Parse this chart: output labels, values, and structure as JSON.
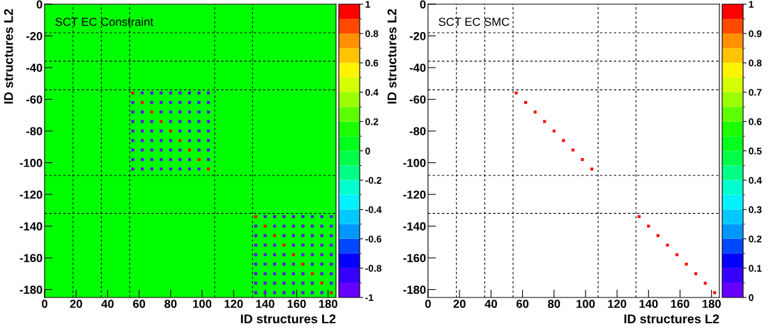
{
  "chart_data": [
    {
      "type": "scatter",
      "annotations": [
        "SCT EC Constraint"
      ],
      "xlabel": "ID structures L2",
      "ylabel": "ID structures L2",
      "xlim": [
        0,
        185
      ],
      "ylim": [
        -185,
        0
      ],
      "xticks": [
        0,
        20,
        40,
        60,
        80,
        100,
        120,
        140,
        160,
        180
      ],
      "yticks": [
        -180,
        -160,
        -140,
        -120,
        -100,
        -80,
        -60,
        -40,
        -20,
        0
      ],
      "clim": [
        -1,
        1
      ],
      "cticks": [
        -1,
        -0.8,
        -0.6,
        -0.4,
        -0.2,
        0,
        0.2,
        0.4,
        0.6,
        0.8,
        1
      ],
      "marker": "square",
      "grid": false,
      "legend": false,
      "bands": [
        {
          "axis": "y",
          "from": -185,
          "to": 0,
          "color": "#00ff00"
        }
      ],
      "ref_lines": [
        {
          "axis": "x",
          "value": 18,
          "line_style": "dashed"
        },
        {
          "axis": "x",
          "value": 36,
          "line_style": "dashed"
        },
        {
          "axis": "x",
          "value": 54,
          "line_style": "dashed"
        },
        {
          "axis": "x",
          "value": 108,
          "line_style": "dashed"
        },
        {
          "axis": "x",
          "value": 132,
          "line_style": "dashed"
        },
        {
          "axis": "y",
          "value": -18,
          "line_style": "dashed"
        },
        {
          "axis": "y",
          "value": -36,
          "line_style": "dashed"
        },
        {
          "axis": "y",
          "value": -54,
          "line_style": "dashed"
        },
        {
          "axis": "y",
          "value": -108,
          "line_style": "dashed"
        },
        {
          "axis": "y",
          "value": -132,
          "line_style": "dashed"
        }
      ],
      "series": [
        {
          "x": [
            56,
            62,
            68,
            74,
            80,
            86,
            92,
            98,
            104,
            56,
            62,
            68,
            74,
            80,
            86,
            92,
            98,
            104,
            56,
            62,
            68,
            74,
            80,
            86,
            92,
            98,
            104,
            56,
            62,
            68,
            74,
            80,
            86,
            92,
            98,
            104,
            56,
            62,
            68,
            74,
            80,
            86,
            92,
            98,
            104,
            56,
            62,
            68,
            74,
            80,
            86,
            92,
            98,
            104,
            56,
            62,
            68,
            74,
            80,
            86,
            92,
            98,
            104,
            56,
            62,
            68,
            74,
            80,
            86,
            92,
            98,
            104,
            56,
            62,
            68,
            74,
            80,
            86,
            92,
            98,
            104,
            134,
            140,
            146,
            152,
            158,
            164,
            170,
            176,
            182,
            134,
            140,
            146,
            152,
            158,
            164,
            170,
            176,
            182,
            134,
            140,
            146,
            152,
            158,
            164,
            170,
            176,
            182,
            134,
            140,
            146,
            152,
            158,
            164,
            170,
            176,
            182,
            134,
            140,
            146,
            152,
            158,
            164,
            170,
            176,
            182,
            134,
            140,
            146,
            152,
            158,
            164,
            170,
            176,
            182,
            134,
            140,
            146,
            152,
            158,
            164,
            170,
            176,
            182,
            134,
            140,
            146,
            152,
            158,
            164,
            170,
            176,
            182,
            134,
            140,
            146,
            152,
            158,
            164,
            170,
            176,
            182
          ],
          "values": [
            -56,
            -56,
            -56,
            -56,
            -56,
            -56,
            -56,
            -56,
            -56,
            -62,
            -62,
            -62,
            -62,
            -62,
            -62,
            -62,
            -62,
            -62,
            -68,
            -68,
            -68,
            -68,
            -68,
            -68,
            -68,
            -68,
            -68,
            -74,
            -74,
            -74,
            -74,
            -74,
            -74,
            -74,
            -74,
            -74,
            -80,
            -80,
            -80,
            -80,
            -80,
            -80,
            -80,
            -80,
            -80,
            -86,
            -86,
            -86,
            -86,
            -86,
            -86,
            -86,
            -86,
            -86,
            -92,
            -92,
            -92,
            -92,
            -92,
            -92,
            -92,
            -92,
            -92,
            -98,
            -98,
            -98,
            -98,
            -98,
            -98,
            -98,
            -98,
            -98,
            -104,
            -104,
            -104,
            -104,
            -104,
            -104,
            -104,
            -104,
            -104,
            -134,
            -134,
            -134,
            -134,
            -134,
            -134,
            -134,
            -134,
            -134,
            -140,
            -140,
            -140,
            -140,
            -140,
            -140,
            -140,
            -140,
            -140,
            -146,
            -146,
            -146,
            -146,
            -146,
            -146,
            -146,
            -146,
            -146,
            -152,
            -152,
            -152,
            -152,
            -152,
            -152,
            -152,
            -152,
            -152,
            -158,
            -158,
            -158,
            -158,
            -158,
            -158,
            -158,
            -158,
            -158,
            -164,
            -164,
            -164,
            -164,
            -164,
            -164,
            -164,
            -164,
            -164,
            -170,
            -170,
            -170,
            -170,
            -170,
            -170,
            -170,
            -170,
            -170,
            -176,
            -176,
            -176,
            -176,
            -176,
            -176,
            -176,
            -176,
            -176,
            -182,
            -182,
            -182,
            -182,
            -182,
            -182,
            -182,
            -182,
            -182
          ],
          "cvalues": [
            1,
            -0.95,
            -0.95,
            -0.95,
            -0.95,
            -0.95,
            -0.95,
            -0.95,
            -0.95,
            -0.95,
            1,
            -0.95,
            -0.95,
            -0.95,
            -0.95,
            -0.95,
            -0.95,
            -0.95,
            -0.95,
            -0.95,
            1,
            -0.95,
            -0.95,
            -0.95,
            -0.95,
            -0.95,
            -0.95,
            -0.95,
            -0.95,
            -0.95,
            1,
            -0.95,
            -0.95,
            -0.95,
            -0.95,
            -0.95,
            -0.95,
            -0.95,
            -0.95,
            -0.95,
            1,
            -0.95,
            -0.95,
            -0.95,
            -0.95,
            -0.95,
            -0.95,
            -0.95,
            -0.95,
            -0.95,
            1,
            -0.95,
            -0.95,
            -0.95,
            -0.95,
            -0.95,
            -0.95,
            -0.95,
            -0.95,
            -0.95,
            1,
            -0.95,
            -0.95,
            -0.95,
            -0.95,
            -0.95,
            -0.95,
            -0.95,
            -0.95,
            -0.95,
            1,
            -0.95,
            -0.95,
            -0.95,
            -0.95,
            -0.95,
            -0.95,
            -0.95,
            -0.95,
            -0.95,
            1,
            1,
            -0.95,
            -0.95,
            -0.95,
            -0.95,
            -0.95,
            -0.95,
            -0.95,
            -0.95,
            -0.95,
            1,
            -0.95,
            -0.95,
            -0.95,
            -0.95,
            -0.95,
            -0.95,
            -0.95,
            -0.95,
            -0.95,
            1,
            -0.95,
            -0.95,
            -0.95,
            -0.95,
            -0.95,
            -0.95,
            -0.95,
            -0.95,
            -0.95,
            1,
            -0.95,
            -0.95,
            -0.95,
            -0.95,
            -0.95,
            -0.95,
            -0.95,
            -0.95,
            -0.95,
            1,
            -0.95,
            -0.95,
            -0.95,
            -0.95,
            -0.95,
            -0.95,
            -0.95,
            -0.95,
            -0.95,
            1,
            -0.95,
            -0.95,
            -0.95,
            -0.95,
            -0.95,
            -0.95,
            -0.95,
            -0.95,
            -0.95,
            1,
            -0.95,
            -0.95,
            -0.95,
            -0.95,
            -0.95,
            -0.95,
            -0.95,
            -0.95,
            -0.95,
            1,
            -0.95,
            -0.95,
            -0.95,
            -0.95,
            -0.95,
            -0.95,
            -0.95,
            -0.95,
            -0.95,
            1
          ]
        }
      ]
    },
    {
      "type": "scatter",
      "annotations": [
        "SCT EC SMC"
      ],
      "xlabel": "ID structures L2",
      "ylabel": "ID structures L2",
      "xlim": [
        0,
        185
      ],
      "ylim": [
        -185,
        0
      ],
      "xticks": [
        0,
        20,
        40,
        60,
        80,
        100,
        120,
        140,
        160,
        180
      ],
      "yticks": [
        -180,
        -160,
        -140,
        -120,
        -100,
        -80,
        -60,
        -40,
        -20,
        0
      ],
      "clim": [
        0,
        1
      ],
      "cticks": [
        0,
        0.1,
        0.2,
        0.3,
        0.4,
        0.5,
        0.6,
        0.7,
        0.8,
        0.9,
        1
      ],
      "marker": "square",
      "grid": false,
      "legend": false,
      "ref_lines": [
        {
          "axis": "x",
          "value": 18,
          "line_style": "dashed"
        },
        {
          "axis": "x",
          "value": 36,
          "line_style": "dashed"
        },
        {
          "axis": "x",
          "value": 54,
          "line_style": "dashed"
        },
        {
          "axis": "x",
          "value": 108,
          "line_style": "dashed"
        },
        {
          "axis": "x",
          "value": 132,
          "line_style": "dashed"
        },
        {
          "axis": "y",
          "value": -18,
          "line_style": "dashed"
        },
        {
          "axis": "y",
          "value": -36,
          "line_style": "dashed"
        },
        {
          "axis": "y",
          "value": -54,
          "line_style": "dashed"
        },
        {
          "axis": "y",
          "value": -108,
          "line_style": "dashed"
        },
        {
          "axis": "y",
          "value": -132,
          "line_style": "dashed"
        }
      ],
      "series": [
        {
          "x": [
            56,
            62,
            68,
            74,
            80,
            86,
            92,
            98,
            104,
            134,
            140,
            146,
            152,
            158,
            164,
            170,
            176,
            182
          ],
          "values": [
            -56,
            -62,
            -68,
            -74,
            -80,
            -86,
            -92,
            -98,
            -104,
            -134,
            -140,
            -146,
            -152,
            -158,
            -164,
            -170,
            -176,
            -182
          ],
          "cvalues": [
            1,
            1,
            1,
            1,
            1,
            1,
            1,
            1,
            1,
            1,
            1,
            1,
            1,
            1,
            1,
            1,
            1,
            1
          ]
        }
      ]
    }
  ]
}
